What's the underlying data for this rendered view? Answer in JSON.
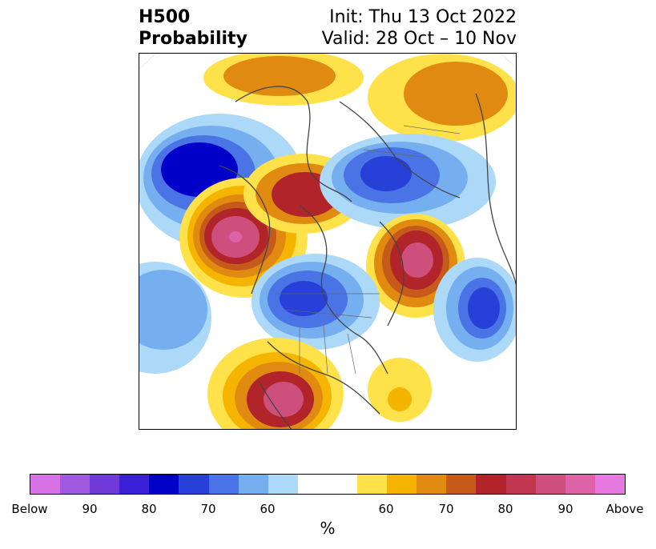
{
  "title": {
    "left_line1": "H500",
    "left_line2": "Probability",
    "init": "Init: Thu 13 Oct 2022",
    "valid": "Valid: 28 Oct – 10 Nov"
  },
  "colorbar": {
    "units": "%",
    "colors": [
      "#d873e6",
      "#9f5ae0",
      "#6f3ad8",
      "#3a1fd6",
      "#0000c8",
      "#2640d8",
      "#4a74e6",
      "#76aff0",
      "#acd9f8",
      "#ffffff",
      "#ffffff",
      "#ffe14a",
      "#f5b400",
      "#e08a12",
      "#c65a1a",
      "#b0242a",
      "#c0364e",
      "#cd4f7c",
      "#de62a8",
      "#e77ae0"
    ],
    "ticks": [
      "Below",
      "90",
      "80",
      "70",
      "60",
      "60",
      "70",
      "80",
      "90",
      "Above"
    ]
  },
  "map": {
    "description_colors": {
      "below_strong": "#0000c8",
      "below_mid": "#2640d8",
      "below_light": "#76aff0",
      "neutral": "#ffffff",
      "above_light": "#ffe14a",
      "above_mid": "#e08a12",
      "above_strong": "#b0242a",
      "above_max": "#cd4f7c"
    }
  }
}
